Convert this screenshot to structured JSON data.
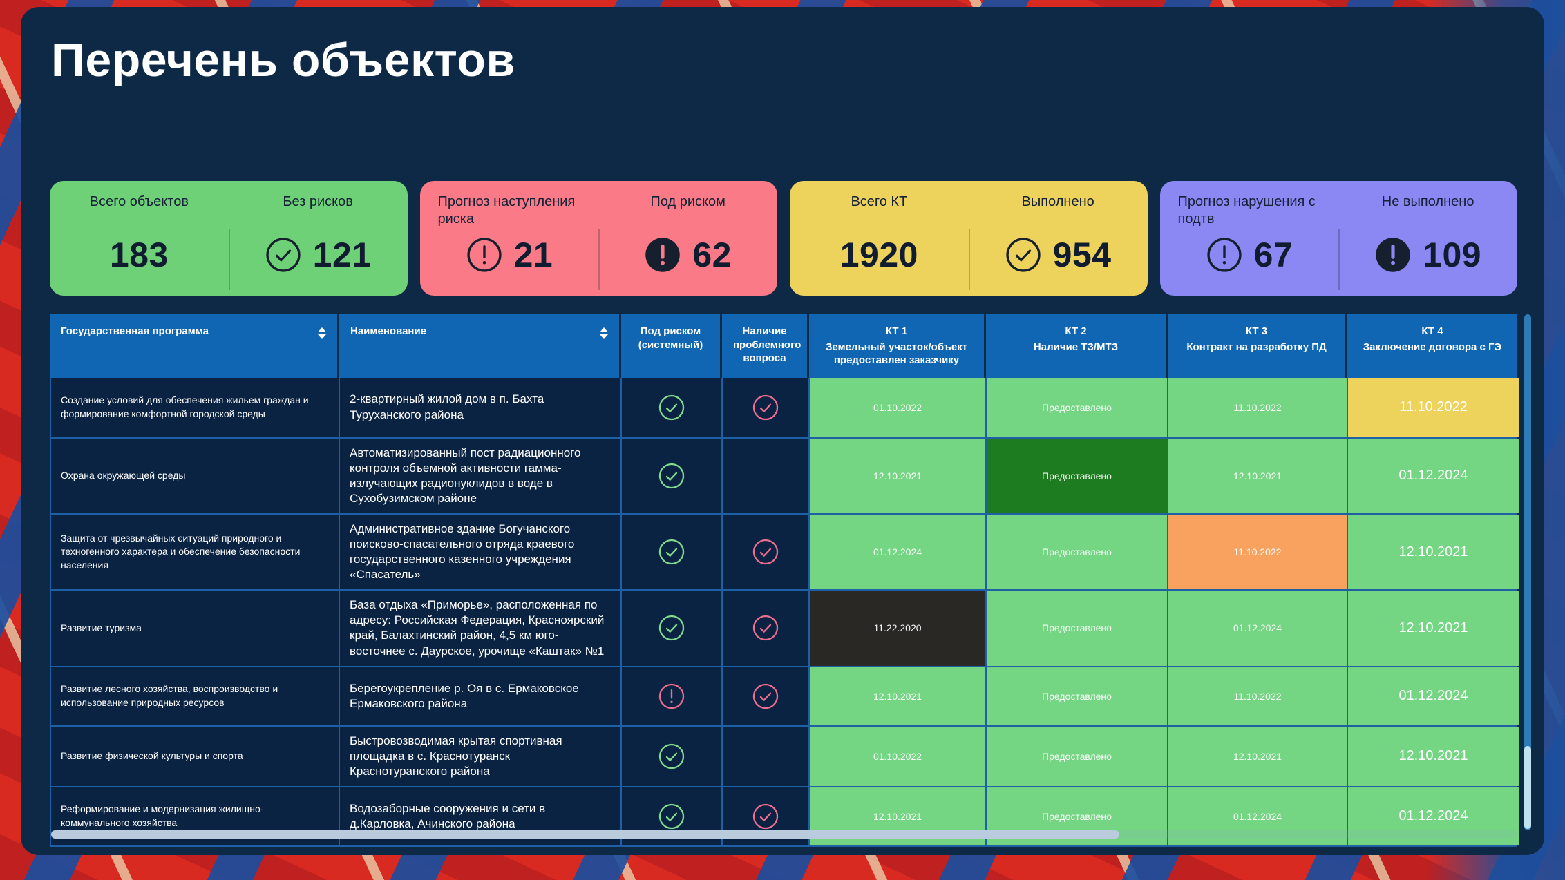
{
  "title": "Перечень объектов",
  "colors": {
    "green_card": "#6fd177",
    "red_card": "#fa7a87",
    "yellow_card": "#edd25b",
    "purple_card": "#8b87f3",
    "cell_green": "#74d583",
    "cell_darkgreen": "#1d7b20",
    "cell_orange": "#f9a25f",
    "cell_black": "#2a2825",
    "cell_yellow": "#edd25b",
    "check_green": "#82da8c",
    "check_pink": "#ec6d90",
    "icon_dark": "#151f2d"
  },
  "cards": [
    {
      "bg": "green_card",
      "left": {
        "label": "Всего объектов",
        "value": "183",
        "icon": "none",
        "align": "center"
      },
      "right": {
        "label": "Без рисков",
        "value": "121",
        "icon": "check-outline"
      }
    },
    {
      "bg": "red_card",
      "left": {
        "label": "Прогноз наступления риска",
        "value": "21",
        "icon": "alert-outline",
        "align": "left"
      },
      "right": {
        "label": "Под риском",
        "value": "62",
        "icon": "alert-filled"
      }
    },
    {
      "bg": "yellow_card",
      "left": {
        "label": "Всего КТ",
        "value": "1920",
        "icon": "none",
        "align": "center"
      },
      "right": {
        "label": "Выполнено",
        "value": "954",
        "icon": "check-outline"
      }
    },
    {
      "bg": "purple_card",
      "left": {
        "label": "Прогноз нарушения с подтв",
        "value": "67",
        "icon": "alert-outline",
        "align": "left"
      },
      "right": {
        "label": "Не выполнено",
        "value": "109",
        "icon": "alert-filled"
      }
    }
  ],
  "table": {
    "headers": {
      "program": "Государственная программа",
      "name": "Наименование",
      "risk": "Под риском (системный)",
      "issue": "Наличие проблемного вопроса",
      "kt1_title": "КТ 1",
      "kt1_sub": "Земельный участок/объект предоставлен заказчику",
      "kt2_title": "КТ 2",
      "kt2_sub": "Наличие ТЗ/МТЗ",
      "kt3_title": "КТ 3",
      "kt3_sub": "Контракт на разработку ПД",
      "kt4_title": "КТ 4",
      "kt4_sub": "Заключение договора с ГЭ"
    },
    "rows": [
      {
        "program": "Создание условий для обеспечения жильем граждан и формирование комфортной городской среды",
        "name": "2-квартирный жилой дом в п. Бахта Туруханского района",
        "risk": "check-green",
        "issue": "check-pink",
        "kt1": {
          "text": "01.10.2022",
          "bg": "green",
          "size": "sm"
        },
        "kt2": {
          "text": "Предоставлено",
          "bg": "green",
          "size": "sm"
        },
        "kt3": {
          "text": "11.10.2022",
          "bg": "green",
          "size": "sm"
        },
        "kt4": {
          "text": "11.10.2022",
          "bg": "yellow",
          "size": "lg"
        }
      },
      {
        "program": "Охрана окружающей среды",
        "name": "Автоматизированный пост радиационного контроля объемной активности гамма-излучающих радионуклидов в воде в Сухобузимском районе",
        "risk": "check-green",
        "issue": "",
        "kt1": {
          "text": "12.10.2021",
          "bg": "green",
          "size": "sm"
        },
        "kt2": {
          "text": "Предоставлено",
          "bg": "darkgreen",
          "size": "sm"
        },
        "kt3": {
          "text": "12.10.2021",
          "bg": "green",
          "size": "sm"
        },
        "kt4": {
          "text": "01.12.2024",
          "bg": "green",
          "size": "lg"
        }
      },
      {
        "program": "Защита от чрезвычайных ситуаций природного и техногенного характера и обеспечение безопасности населения",
        "name": "Административное здание Богучанского поисково-спасательного отряда краевого государственного казенного учреждения «Спасатель»",
        "risk": "check-green",
        "issue": "check-pink",
        "kt1": {
          "text": "01.12.2024",
          "bg": "green",
          "size": "sm"
        },
        "kt2": {
          "text": "Предоставлено",
          "bg": "green",
          "size": "sm"
        },
        "kt3": {
          "text": "11.10.2022",
          "bg": "orange",
          "size": "sm"
        },
        "kt4": {
          "text": "12.10.2021",
          "bg": "green",
          "size": "lg"
        }
      },
      {
        "program": "Развитие туризма",
        "name": "База отдыха «Приморье», расположенная по адресу: Российская Федерация, Красноярский край, Балахтинский район, 4,5 км юго-восточнее с. Даурское, урочище «Каштак» №1",
        "risk": "check-green",
        "issue": "check-pink",
        "kt1": {
          "text": "11.22.2020",
          "bg": "black",
          "size": "sm"
        },
        "kt2": {
          "text": "Предоставлено",
          "bg": "green",
          "size": "sm"
        },
        "kt3": {
          "text": "01.12.2024",
          "bg": "green",
          "size": "sm"
        },
        "kt4": {
          "text": "12.10.2021",
          "bg": "green",
          "size": "lg"
        }
      },
      {
        "program": "Развитие лесного хозяйства, воспроизводство и использование природных ресурсов",
        "name": "Берегоукрепление р. Оя в с. Ермаковское Ермаковского района",
        "risk": "alert-pink",
        "issue": "check-pink",
        "kt1": {
          "text": "12.10.2021",
          "bg": "green",
          "size": "sm"
        },
        "kt2": {
          "text": "Предоставлено",
          "bg": "green",
          "size": "sm"
        },
        "kt3": {
          "text": "11.10.2022",
          "bg": "green",
          "size": "sm"
        },
        "kt4": {
          "text": "01.12.2024",
          "bg": "green",
          "size": "lg"
        }
      },
      {
        "program": "Развитие физической культуры и спорта",
        "name": "Быстровозводимая крытая спортивная площадка в с. Краснотуранск Краснотуранского района",
        "risk": "check-green",
        "issue": "",
        "kt1": {
          "text": "01.10.2022",
          "bg": "green",
          "size": "sm"
        },
        "kt2": {
          "text": "Предоставлено",
          "bg": "green",
          "size": "sm"
        },
        "kt3": {
          "text": "12.10.2021",
          "bg": "green",
          "size": "sm"
        },
        "kt4": {
          "text": "12.10.2021",
          "bg": "green",
          "size": "lg"
        }
      },
      {
        "program": "Реформирование и модернизация жилищно-коммунального хозяйства",
        "name": "Водозаборные сооружения и сети в д.Карловка, Ачинского района",
        "risk": "check-green",
        "issue": "check-pink",
        "kt1": {
          "text": "12.10.2021",
          "bg": "green",
          "size": "sm"
        },
        "kt2": {
          "text": "Предоставлено",
          "bg": "green",
          "size": "sm"
        },
        "kt3": {
          "text": "01.12.2024",
          "bg": "green",
          "size": "sm"
        },
        "kt4": {
          "text": "01.12.2024",
          "bg": "green",
          "size": "lg"
        }
      }
    ]
  }
}
